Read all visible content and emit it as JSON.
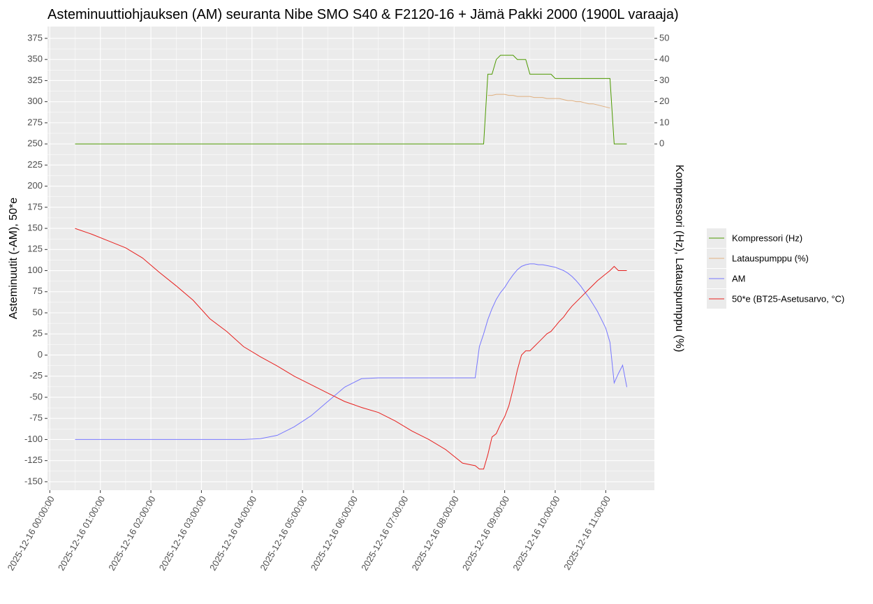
{
  "chart_data": {
    "type": "line",
    "title": "Asteminuuttiohjauksen (AM) seuranta Nibe SMO S40 & F2120-16 + Jämä Pakki 2000 (1900L varaaja)",
    "y_label": "Asteminuutit (-AM), 50*e",
    "y2_label": "Kompressori (Hz), Latauspumppu (%)",
    "x": [
      "2025-12-16 00:30:00",
      "2025-12-16 00:50:00",
      "2025-12-16 01:10:00",
      "2025-12-16 01:30:00",
      "2025-12-16 01:50:00",
      "2025-12-16 02:10:00",
      "2025-12-16 02:30:00",
      "2025-12-16 02:50:00",
      "2025-12-16 03:10:00",
      "2025-12-16 03:30:00",
      "2025-12-16 03:50:00",
      "2025-12-16 04:10:00",
      "2025-12-16 04:30:00",
      "2025-12-16 04:50:00",
      "2025-12-16 05:10:00",
      "2025-12-16 05:30:00",
      "2025-12-16 05:50:00",
      "2025-12-16 06:10:00",
      "2025-12-16 06:30:00",
      "2025-12-16 06:50:00",
      "2025-12-16 07:10:00",
      "2025-12-16 07:30:00",
      "2025-12-16 07:50:00",
      "2025-12-16 08:10:00",
      "2025-12-16 08:20:00",
      "2025-12-16 08:25:00",
      "2025-12-16 08:30:00",
      "2025-12-16 08:35:00",
      "2025-12-16 08:40:00",
      "2025-12-16 08:45:00",
      "2025-12-16 08:50:00",
      "2025-12-16 08:55:00",
      "2025-12-16 09:00:00",
      "2025-12-16 09:05:00",
      "2025-12-16 09:10:00",
      "2025-12-16 09:15:00",
      "2025-12-16 09:20:00",
      "2025-12-16 09:25:00",
      "2025-12-16 09:30:00",
      "2025-12-16 09:35:00",
      "2025-12-16 09:40:00",
      "2025-12-16 09:45:00",
      "2025-12-16 09:50:00",
      "2025-12-16 09:55:00",
      "2025-12-16 10:00:00",
      "2025-12-16 10:05:00",
      "2025-12-16 10:10:00",
      "2025-12-16 10:15:00",
      "2025-12-16 10:20:00",
      "2025-12-16 10:25:00",
      "2025-12-16 10:30:00",
      "2025-12-16 10:35:00",
      "2025-12-16 10:40:00",
      "2025-12-16 10:45:00",
      "2025-12-16 10:50:00",
      "2025-12-16 10:55:00",
      "2025-12-16 11:00:00",
      "2025-12-16 11:05:00",
      "2025-12-16 11:10:00",
      "2025-12-16 11:15:00",
      "2025-12-16 11:20:00",
      "2025-12-16 11:25:00"
    ],
    "series": [
      {
        "name": "Kompressori (Hz)",
        "color": "#4d9a00",
        "axis": "y2",
        "values": [
          0,
          0,
          0,
          0,
          0,
          0,
          0,
          0,
          0,
          0,
          0,
          0,
          0,
          0,
          0,
          0,
          0,
          0,
          0,
          0,
          0,
          0,
          0,
          0,
          0,
          0,
          0,
          0,
          33,
          33,
          40,
          42,
          42,
          42,
          42,
          40,
          40,
          40,
          33,
          33,
          33,
          33,
          33,
          33,
          31,
          31,
          31,
          31,
          31,
          31,
          31,
          31,
          31,
          31,
          31,
          31,
          31,
          31,
          0,
          0,
          0,
          0
        ]
      },
      {
        "name": "Latauspumppu (%)",
        "color": "#e0b080",
        "axis": "y2",
        "values": [
          null,
          null,
          null,
          null,
          null,
          null,
          null,
          null,
          null,
          null,
          null,
          null,
          null,
          null,
          null,
          null,
          null,
          null,
          null,
          null,
          null,
          null,
          null,
          null,
          null,
          null,
          null,
          null,
          23,
          23,
          23.5,
          23.5,
          23.5,
          23,
          23,
          22.5,
          22.5,
          22.5,
          22.5,
          22,
          22,
          22,
          21.5,
          21.5,
          21.5,
          21.5,
          21,
          20.5,
          20.5,
          20,
          20,
          19.5,
          19,
          19,
          18.5,
          18,
          17.5,
          17,
          null,
          null,
          null,
          null
        ]
      },
      {
        "name": "AM",
        "color": "#7777ff",
        "values": [
          -100,
          -100,
          -100,
          -100,
          -100,
          -100,
          -100,
          -100,
          -100,
          -100,
          -100,
          -99,
          -95,
          -85,
          -72,
          -55,
          -38,
          -28,
          -27,
          -27,
          -27,
          -27,
          -27,
          -27,
          -27,
          -27,
          10,
          25,
          42,
          55,
          66,
          74,
          80,
          88,
          95,
          101,
          105,
          107,
          108,
          108,
          107,
          107,
          106,
          105,
          104,
          102,
          100,
          97,
          93,
          88,
          82,
          75,
          68,
          60,
          52,
          42,
          32,
          15,
          -33,
          -22,
          -12,
          -38
        ]
      },
      {
        "name": "50*e (BT25-Asetusarvo, °C)",
        "color": "#e8201e",
        "values": [
          150,
          143,
          135,
          127,
          115,
          98,
          82,
          65,
          43,
          28,
          10,
          -2,
          -13,
          -25,
          -35,
          -45,
          -55,
          -62,
          -68,
          -78,
          -90,
          -100,
          -112,
          -128,
          -130,
          -131,
          -135,
          -135,
          -118,
          -97,
          -93,
          -82,
          -73,
          -60,
          -40,
          -18,
          0,
          5,
          5,
          10,
          15,
          20,
          25,
          28,
          34,
          40,
          45,
          52,
          58,
          63,
          68,
          73,
          78,
          83,
          88,
          92,
          96,
          100,
          105,
          100,
          100,
          100
        ]
      }
    ],
    "xlim": [
      "2025-12-16 00:30:00",
      "2025-12-16 11:25:00"
    ],
    "xticks": [
      "2025-12-16 00:00:00",
      "2025-12-16 01:00:00",
      "2025-12-16 02:00:00",
      "2025-12-16 03:00:00",
      "2025-12-16 04:00:00",
      "2025-12-16 05:00:00",
      "2025-12-16 06:00:00",
      "2025-12-16 07:00:00",
      "2025-12-16 08:00:00",
      "2025-12-16 09:00:00",
      "2025-12-16 10:00:00",
      "2025-12-16 11:00:00"
    ],
    "ylim": [
      -160,
      389
    ],
    "yticks": [
      -150,
      -125,
      -100,
      -75,
      -50,
      -25,
      0,
      25,
      50,
      75,
      100,
      125,
      150,
      175,
      200,
      225,
      250,
      275,
      300,
      325,
      350,
      375
    ],
    "y2lim": [
      -164,
      55.6
    ],
    "y2ticks": [
      0,
      10,
      20,
      30,
      40,
      50
    ],
    "grid": true
  }
}
